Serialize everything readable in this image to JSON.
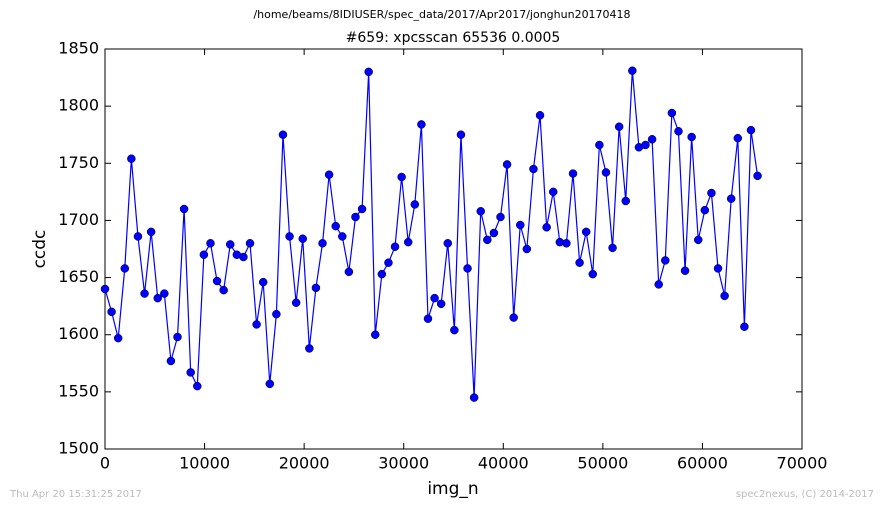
{
  "chart_data": {
    "type": "line",
    "suptitle": "/home/beams/8IDIUSER/spec_data/2017/Apr2017/jonghun20170418",
    "title": "#659: xpcsscan 65536 0.0005",
    "xlabel": "img_n",
    "ylabel": "ccdc",
    "footer_left": "Thu Apr 20 15:31:25 2017",
    "footer_right": "spec2nexus, (C) 2014-2017",
    "x": [
      0,
      662,
      1324,
      1986,
      2648,
      3310,
      3972,
      4634,
      5296,
      5958,
      6620,
      7282,
      7944,
      8606,
      9268,
      9930,
      10592,
      11254,
      11916,
      12578,
      13240,
      13902,
      14564,
      15226,
      15888,
      16550,
      17212,
      17874,
      18536,
      19198,
      19860,
      20522,
      21184,
      21846,
      22508,
      23170,
      23832,
      24494,
      25156,
      25818,
      26480,
      27142,
      27804,
      28466,
      29128,
      29790,
      30452,
      31114,
      31776,
      32438,
      33100,
      33762,
      34424,
      35086,
      35748,
      36410,
      37072,
      37734,
      38396,
      39058,
      39720,
      40382,
      41044,
      41706,
      42368,
      43030,
      43692,
      44354,
      45016,
      45678,
      46340,
      47002,
      47664,
      48326,
      48988,
      49650,
      50312,
      50974,
      51636,
      52298,
      52960,
      53622,
      54284,
      54946,
      55608,
      56270,
      56932,
      57594,
      58256,
      58918,
      59580,
      60242,
      60904,
      61566,
      62228,
      62890,
      63552,
      64214,
      64876,
      65538
    ],
    "series": [
      {
        "color": "#0000ff",
        "values": [
          1640,
          1620,
          1597,
          1658,
          1754,
          1686,
          1636,
          1690,
          1632,
          1636,
          1577,
          1598,
          1710,
          1567,
          1555,
          1670,
          1680,
          1647,
          1639,
          1679,
          1670,
          1668,
          1680,
          1609,
          1646,
          1557,
          1618,
          1775,
          1686,
          1628,
          1684,
          1588,
          1641,
          1680,
          1740,
          1695,
          1686,
          1655,
          1703,
          1710,
          1830,
          1600,
          1653,
          1663,
          1677,
          1738,
          1681,
          1714,
          1784,
          1614,
          1632,
          1627,
          1680,
          1604,
          1775,
          1658,
          1545,
          1708,
          1683,
          1689,
          1703,
          1749,
          1615,
          1696,
          1675,
          1745,
          1792,
          1694,
          1725,
          1681,
          1680,
          1741,
          1663,
          1690,
          1653,
          1766,
          1742,
          1676,
          1782,
          1717,
          1831,
          1764,
          1766,
          1771,
          1644,
          1665,
          1794,
          1778,
          1656,
          1773,
          1683,
          1709,
          1724,
          1658,
          1634,
          1719,
          1772,
          1607,
          1779,
          1739
        ]
      }
    ],
    "xlim": [
      0,
      70000
    ],
    "ylim": [
      1500,
      1850
    ],
    "xticks": [
      0,
      10000,
      20000,
      30000,
      40000,
      50000,
      60000,
      70000
    ],
    "yticks": [
      1500,
      1550,
      1600,
      1650,
      1700,
      1750,
      1800,
      1850
    ]
  }
}
